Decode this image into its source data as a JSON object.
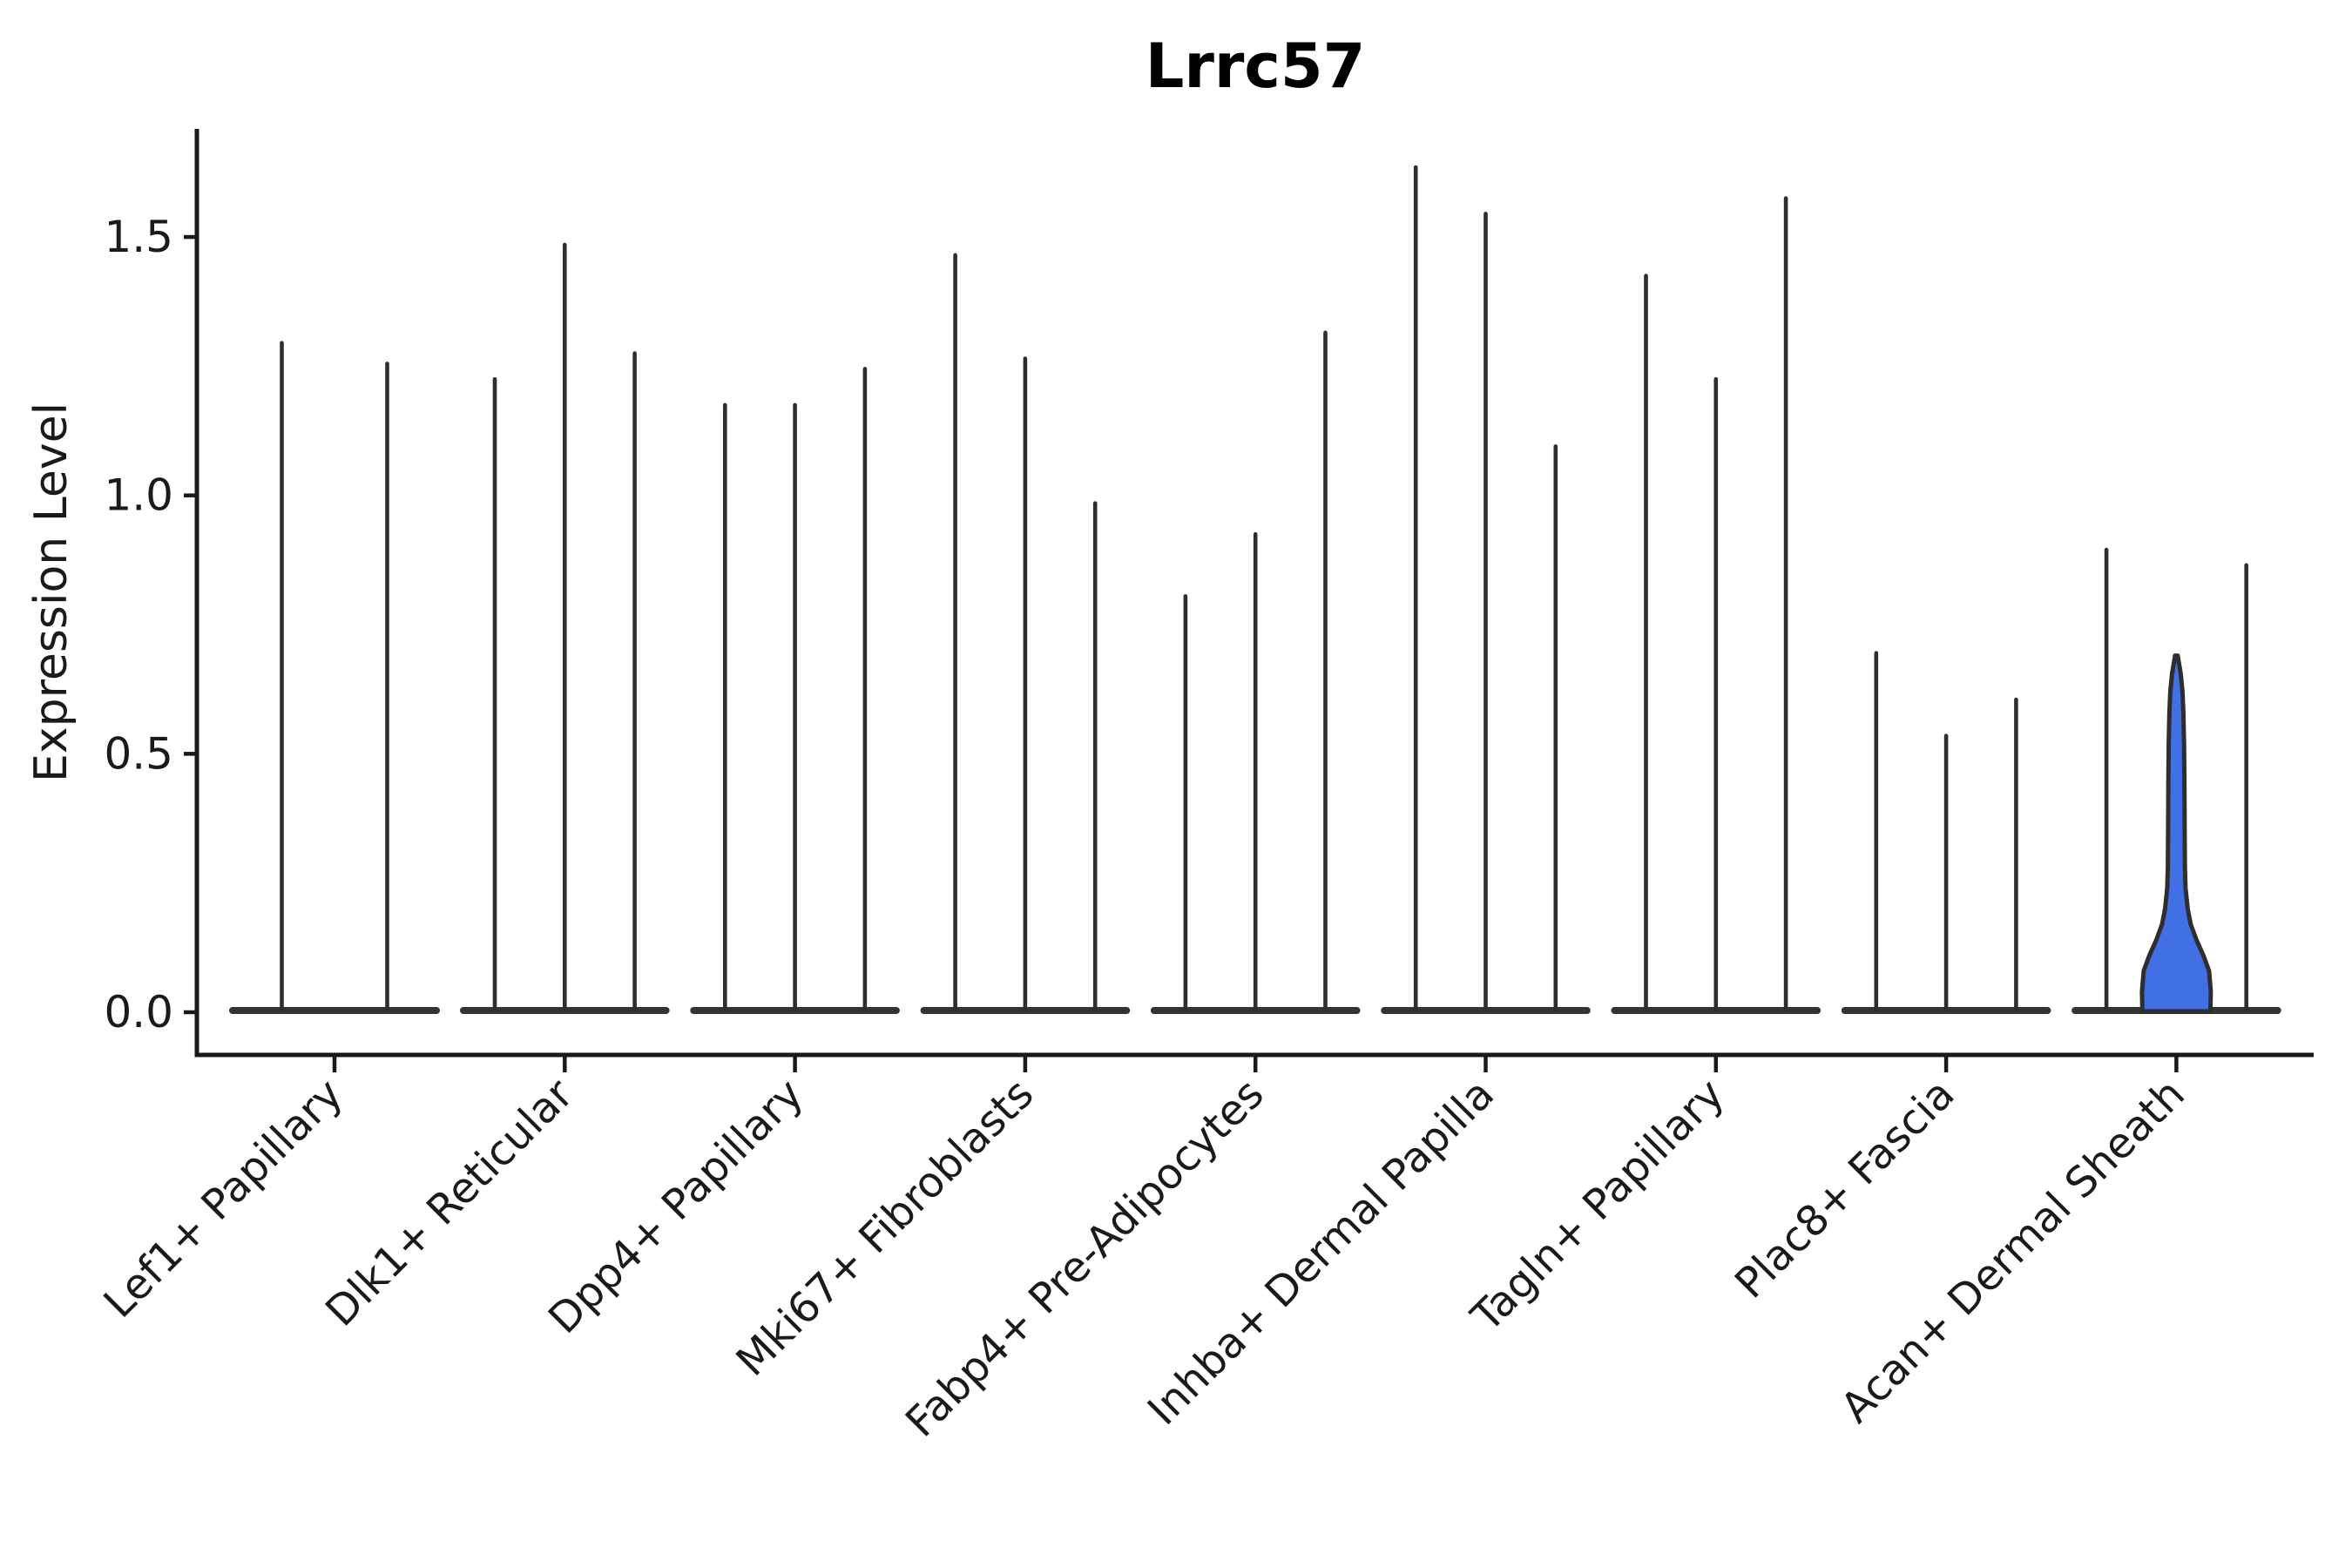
{
  "page": {
    "background": "#ffffff"
  },
  "chart_data": {
    "type": "violin",
    "title": "Lrrc57",
    "ylabel": "Expression Level",
    "xlabel": "",
    "ytick_labels": [
      "0.0",
      "0.5",
      "1.0",
      "1.5"
    ],
    "ytick_values": [
      0.0,
      0.5,
      1.0,
      1.5
    ],
    "ylim": [
      -0.08,
      1.71
    ],
    "grid": false,
    "legend_position": "none",
    "categories": [
      "Lef1+ Papillary",
      "Dlk1+ Reticular",
      "Dpp4+ Papillary",
      "Mki67+ Fibroblasts",
      "Fabp4+ Pre-Adipocytes",
      "Inhba+ Dermal Papilla",
      "Tagln+ Papillary",
      "Plac8+ Fascia",
      "Acan+ Dermal Sheath"
    ],
    "groups": [
      {
        "category": "Lef1+ Papillary",
        "violins": [
          {
            "max": 1.3
          },
          {
            "max": 1.26
          }
        ]
      },
      {
        "category": "Dlk1+ Reticular",
        "violins": [
          {
            "max": 1.23
          },
          {
            "max": 1.49
          },
          {
            "max": 1.28
          }
        ]
      },
      {
        "category": "Dpp4+ Papillary",
        "violins": [
          {
            "max": 1.18
          },
          {
            "max": 1.18
          },
          {
            "max": 1.25
          }
        ]
      },
      {
        "category": "Mki67+ Fibroblasts",
        "violins": [
          {
            "max": 1.47
          },
          {
            "max": 1.27
          },
          {
            "max": 0.99
          }
        ]
      },
      {
        "category": "Fabp4+ Pre-Adipocytes",
        "violins": [
          {
            "max": 0.81
          },
          {
            "max": 0.93
          },
          {
            "max": 1.32
          }
        ]
      },
      {
        "category": "Inhba+ Dermal Papilla",
        "violins": [
          {
            "max": 1.64
          },
          {
            "max": 1.55
          },
          {
            "max": 1.1
          }
        ]
      },
      {
        "category": "Tagln+ Papillary",
        "violins": [
          {
            "max": 1.43
          },
          {
            "max": 1.23
          },
          {
            "max": 1.58
          }
        ]
      },
      {
        "category": "Plac8+ Fascia",
        "violins": [
          {
            "max": 0.7
          },
          {
            "max": 0.54
          },
          {
            "max": 0.61
          }
        ]
      },
      {
        "category": "Acan+ Dermal Sheath",
        "violins": [
          {
            "max": 0.9
          },
          {
            "max": 0.69,
            "filled": true
          },
          {
            "max": 0.87
          }
        ]
      }
    ],
    "highlight": {
      "category": "Acan+ Dermal Sheath",
      "violin_index": 1,
      "max": 0.69,
      "fill_color": "#4170e4",
      "width_profile": [
        [
          0.0,
          39.0
        ],
        [
          0.04,
          39.5
        ],
        [
          0.08,
          37.5
        ],
        [
          0.11,
          31.0
        ],
        [
          0.14,
          23.0
        ],
        [
          0.17,
          16.5
        ],
        [
          0.2,
          13.0
        ],
        [
          0.24,
          10.5
        ],
        [
          0.28,
          9.8
        ],
        [
          0.35,
          9.5
        ],
        [
          0.45,
          9.2
        ],
        [
          0.52,
          8.8
        ],
        [
          0.58,
          8.0
        ],
        [
          0.62,
          7.0
        ],
        [
          0.655,
          5.0
        ],
        [
          0.675,
          3.0
        ],
        [
          0.69,
          1.5
        ]
      ]
    },
    "colors": {
      "spike": "#2e2e2e",
      "baseline_bump": "#333333",
      "axis": "#1a1a1a",
      "text": "#1a1a1a",
      "title": "#000000",
      "highlight_fill": "#4170e4",
      "background": "#ffffff"
    }
  }
}
